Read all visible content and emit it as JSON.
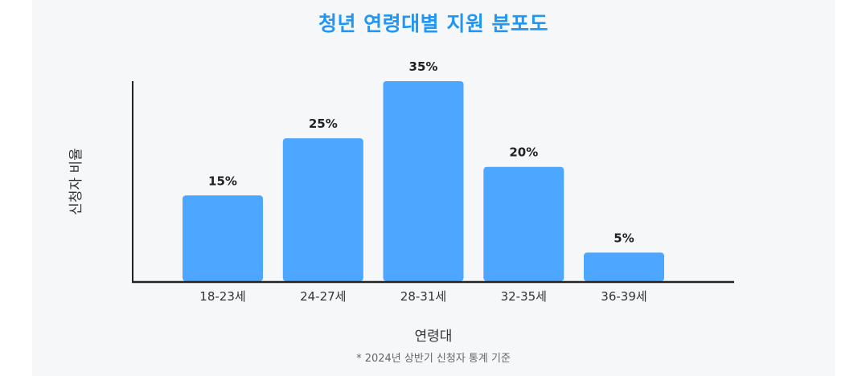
{
  "chart_data": {
    "type": "bar",
    "title": "청년 연령대별 지원 분포도",
    "xlabel": "연령대",
    "ylabel": "신청자 비율",
    "categories": [
      "18-23세",
      "24-27세",
      "28-31세",
      "32-35세",
      "36-39세"
    ],
    "values": [
      15,
      25,
      35,
      20,
      5
    ],
    "value_labels": [
      "15%",
      "25%",
      "35%",
      "20%",
      "5%"
    ],
    "ylim": [
      0,
      35
    ],
    "grid": false,
    "legend": "none",
    "footnote": "* 2024년 상반기 신청자 통계 기준"
  },
  "colors": {
    "title": "#2196f3",
    "bar": "#4da6ff",
    "axis": "#222222",
    "panel": "#f6f7f9"
  }
}
